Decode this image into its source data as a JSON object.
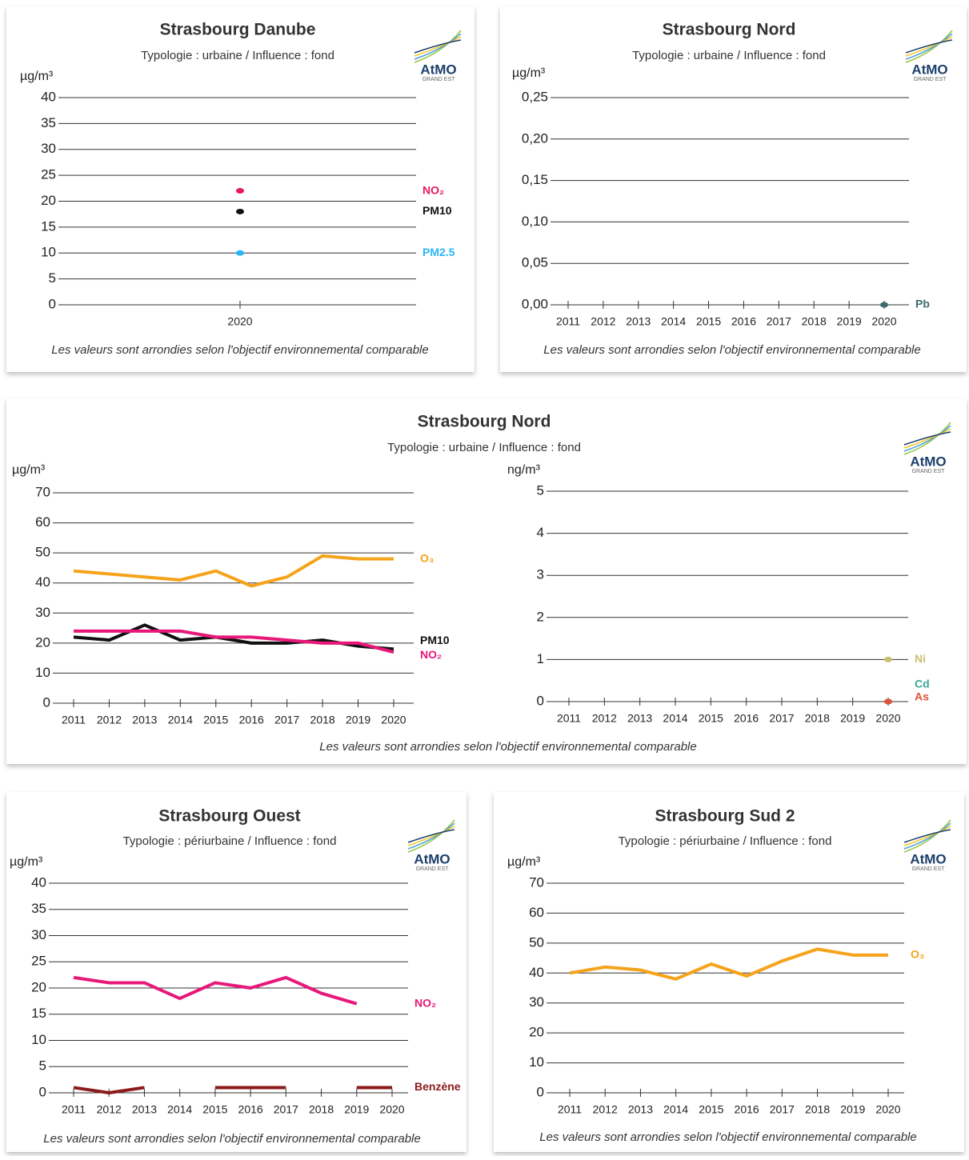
{
  "chart_data": [
    {
      "type": "line",
      "title": "Strasbourg Danube",
      "subtitle": "Typologie : urbaine /  Influence : fond",
      "y_label": "µg/m³",
      "footnote": "Les valeurs sont arrondies selon l'objectif environnemental comparable",
      "logo": "AtMO",
      "logo_subtitle": "GRAND EST",
      "categories": [
        "2020"
      ],
      "ylim": [
        0,
        40
      ],
      "yticks": [
        0,
        5,
        10,
        15,
        20,
        25,
        30,
        35,
        40
      ],
      "series": [
        {
          "name": "NO₂",
          "color": "#e8175d",
          "values": [
            22
          ]
        },
        {
          "name": "PM10",
          "color": "#111111",
          "values": [
            18
          ]
        },
        {
          "name": "PM2.5",
          "color": "#29b6f6",
          "values": [
            10
          ]
        }
      ]
    },
    {
      "type": "line",
      "title": "Strasbourg Nord",
      "subtitle": "Typologie : urbaine /  Influence : fond",
      "y_label": "µg/m³",
      "footnote": "Les valeurs sont arrondies selon l'objectif environnemental comparable",
      "logo": "AtMO",
      "logo_subtitle": "GRAND EST",
      "categories": [
        "2011",
        "2012",
        "2013",
        "2014",
        "2015",
        "2016",
        "2017",
        "2018",
        "2019",
        "2020"
      ],
      "ylim": [
        0,
        0.25
      ],
      "yticks": [
        {
          "value": 0,
          "label": "0,00"
        },
        {
          "value": 0.05,
          "label": "0,05"
        },
        {
          "value": 0.1,
          "label": "0,10"
        },
        {
          "value": 0.15,
          "label": "0,15"
        },
        {
          "value": 0.2,
          "label": "0,20"
        },
        {
          "value": 0.25,
          "label": "0,25"
        }
      ],
      "series": [
        {
          "name": "Pb",
          "color": "#3d6b6b",
          "values": [
            null,
            null,
            null,
            null,
            null,
            null,
            null,
            null,
            null,
            0
          ]
        }
      ]
    },
    {
      "type": "line",
      "title": "Strasbourg Nord",
      "subtitle": "Typologie : urbaine /  Influence : fond",
      "y_label": "µg/m³",
      "footnote": "Les valeurs sont arrondies selon l'objectif environnemental comparable",
      "logo": "AtMO",
      "logo_subtitle": "GRAND EST",
      "categories": [
        "2011",
        "2012",
        "2013",
        "2014",
        "2015",
        "2016",
        "2017",
        "2018",
        "2019",
        "2020"
      ],
      "ylim": [
        0,
        70
      ],
      "yticks": [
        0,
        10,
        20,
        30,
        40,
        50,
        60,
        70
      ],
      "series": [
        {
          "name": "O₃",
          "color": "#f5a31a",
          "values": [
            44,
            43,
            42,
            41,
            44,
            39,
            42,
            49,
            48,
            48
          ]
        },
        {
          "name": "PM10",
          "color": "#111111",
          "values": [
            22,
            21,
            26,
            21,
            22,
            20,
            20,
            21,
            19,
            18
          ]
        },
        {
          "name": "NO₂",
          "color": "#e8177a",
          "values": [
            24,
            24,
            24,
            24,
            22,
            22,
            21,
            20,
            20,
            17
          ]
        }
      ]
    },
    {
      "type": "line",
      "y_label": "ng/m³",
      "categories": [
        "2011",
        "2012",
        "2013",
        "2014",
        "2015",
        "2016",
        "2017",
        "2018",
        "2019",
        "2020"
      ],
      "ylim": [
        0,
        5
      ],
      "yticks": [
        0,
        1,
        2,
        3,
        4,
        5
      ],
      "series": [
        {
          "name": "Ni",
          "color": "#c9c070",
          "values": [
            null,
            null,
            null,
            null,
            null,
            null,
            null,
            null,
            null,
            1
          ]
        },
        {
          "name": "Cd",
          "color": "#3aa89a",
          "values": [
            null,
            null,
            null,
            null,
            null,
            null,
            null,
            null,
            null,
            0
          ]
        },
        {
          "name": "As",
          "color": "#e0503a",
          "values": [
            null,
            null,
            null,
            null,
            null,
            null,
            null,
            null,
            null,
            0
          ]
        }
      ]
    },
    {
      "type": "line",
      "title": "Strasbourg Ouest",
      "subtitle": "Typologie : périurbaine /  Influence : fond",
      "y_label": "µg/m³",
      "footnote": "Les valeurs sont arrondies selon l'objectif environnemental comparable",
      "logo": "AtMO",
      "logo_subtitle": "GRAND EST",
      "categories": [
        "2011",
        "2012",
        "2013",
        "2014",
        "2015",
        "2016",
        "2017",
        "2018",
        "2019",
        "2020"
      ],
      "ylim": [
        0,
        40
      ],
      "yticks": [
        0,
        5,
        10,
        15,
        20,
        25,
        30,
        35,
        40
      ],
      "series": [
        {
          "name": "NO₂",
          "color": "#e8177a",
          "values": [
            22,
            21,
            21,
            18,
            21,
            20,
            22,
            19,
            17,
            null
          ]
        },
        {
          "name": "Benzène",
          "color": "#8b1a1a",
          "values": [
            1,
            0,
            1,
            null,
            1,
            1,
            1,
            null,
            1,
            1
          ]
        }
      ]
    },
    {
      "type": "line",
      "title": "Strasbourg Sud 2",
      "subtitle": "Typologie : périurbaine /  Influence : fond",
      "y_label": "µg/m³",
      "footnote": "Les valeurs sont arrondies selon l'objectif environnemental comparable",
      "logo": "AtMO",
      "logo_subtitle": "GRAND EST",
      "categories": [
        "2011",
        "2012",
        "2013",
        "2014",
        "2015",
        "2016",
        "2017",
        "2018",
        "2019",
        "2020"
      ],
      "ylim": [
        0,
        70
      ],
      "yticks": [
        0,
        10,
        20,
        30,
        40,
        50,
        60,
        70
      ],
      "series": [
        {
          "name": "O₃",
          "color": "#f5a31a",
          "values": [
            40,
            42,
            41,
            38,
            43,
            39,
            44,
            48,
            46,
            46
          ]
        }
      ]
    }
  ]
}
